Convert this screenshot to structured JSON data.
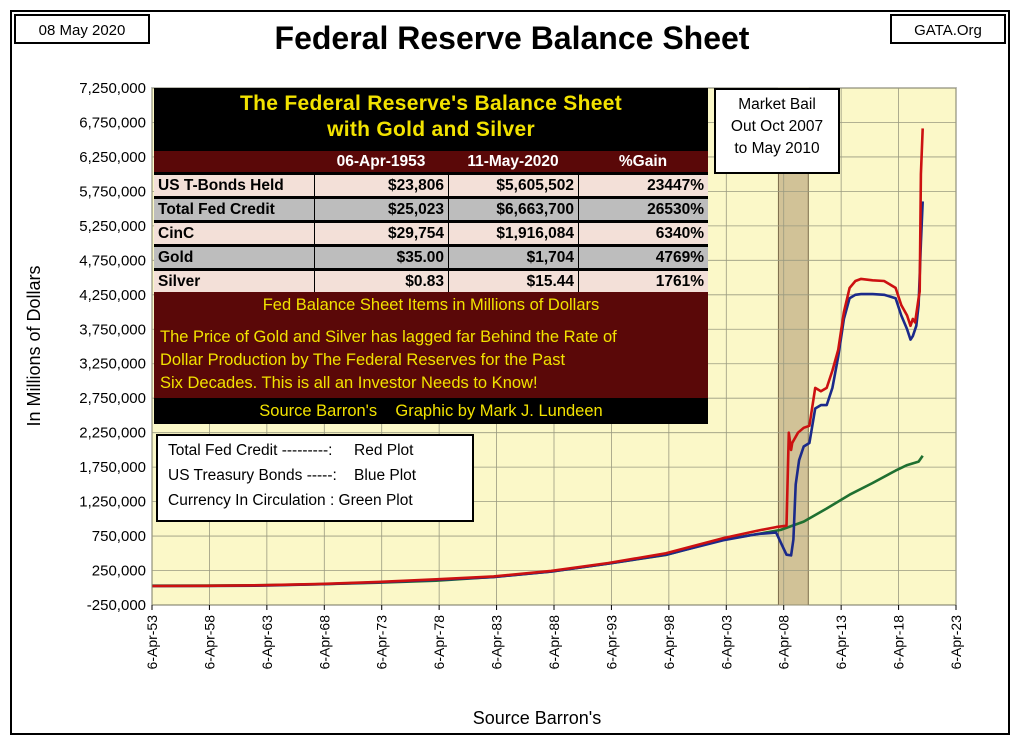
{
  "header": {
    "date": "08 May 2020",
    "source_tag": "GATA.Org",
    "title": "Federal Reserve Balance Sheet"
  },
  "chart_data": {
    "type": "line",
    "title": "Federal Reserve Balance Sheet",
    "xlabel": "Source Barron's",
    "ylabel": "In Millions of Dollars",
    "x_tick_labels": [
      "6-Apr-53",
      "6-Apr-58",
      "6-Apr-63",
      "6-Apr-68",
      "6-Apr-73",
      "6-Apr-78",
      "6-Apr-83",
      "6-Apr-88",
      "6-Apr-93",
      "6-Apr-98",
      "6-Apr-03",
      "6-Apr-08",
      "6-Apr-13",
      "6-Apr-18",
      "6-Apr-23"
    ],
    "x_tick_years": [
      1953,
      1958,
      1963,
      1968,
      1973,
      1978,
      1983,
      1988,
      1993,
      1998,
      2003,
      2008,
      2013,
      2018,
      2023
    ],
    "y_tick_labels": [
      "7,250,000",
      "6,750,000",
      "6,250,000",
      "5,750,000",
      "5,250,000",
      "4,750,000",
      "4,250,000",
      "3,750,000",
      "3,250,000",
      "2,750,000",
      "2,250,000",
      "1,750,000",
      "1,250,000",
      "750,000",
      "250,000",
      "-250,000"
    ],
    "xlim": [
      1953.26,
      2023.26
    ],
    "ylim": [
      -250000,
      7250000
    ],
    "grid": true,
    "background_color": "#fbf8c8",
    "highlight_band": {
      "x_start": 2007.8,
      "x_end": 2010.4,
      "color": "#c9b98e"
    },
    "series": [
      {
        "name": "Total Fed Credit",
        "color": "#cc1111",
        "x": [
          1953.3,
          1958,
          1963,
          1968,
          1973,
          1978,
          1983,
          1988,
          1993,
          1998,
          2003,
          2006,
          2007.6,
          2008.5,
          2008.7,
          2008.9,
          2009,
          2009.5,
          2010,
          2010.5,
          2011,
          2011.5,
          2012,
          2012.5,
          2013,
          2013.5,
          2014,
          2014.5,
          2015,
          2016,
          2017,
          2018,
          2018.5,
          2019,
          2019.3,
          2019.5,
          2019.7,
          2020,
          2020.1,
          2020.2,
          2020.36
        ],
        "y": [
          25023,
          28000,
          37000,
          56000,
          85000,
          123000,
          165000,
          245000,
          360000,
          500000,
          720000,
          830000,
          880000,
          900000,
          2250000,
          2000000,
          2100000,
          2250000,
          2320000,
          2350000,
          2900000,
          2850000,
          2900000,
          3150000,
          3450000,
          4000000,
          4350000,
          4450000,
          4480000,
          4460000,
          4450000,
          4350000,
          4100000,
          3950000,
          3800000,
          3900000,
          3850000,
          4200000,
          4300000,
          6000000,
          6663700
        ]
      },
      {
        "name": "US Treasury Bonds",
        "color": "#1b2a8a",
        "x": [
          1953.3,
          1958,
          1963,
          1968,
          1973,
          1978,
          1983,
          1988,
          1993,
          1998,
          2003,
          2006,
          2007.6,
          2008.5,
          2008.9,
          2009.1,
          2009.3,
          2009.6,
          2010,
          2010.5,
          2011,
          2011.5,
          2012,
          2012.5,
          2013,
          2013.5,
          2014,
          2014.5,
          2015,
          2016,
          2017,
          2018,
          2018.5,
          2019,
          2019.3,
          2019.5,
          2019.8,
          2020,
          2020.2,
          2020.36
        ],
        "y": [
          23806,
          26000,
          32000,
          52000,
          79000,
          116000,
          155000,
          235000,
          350000,
          480000,
          690000,
          780000,
          800000,
          480000,
          470000,
          700000,
          1500000,
          1850000,
          2050000,
          2100000,
          2600000,
          2650000,
          2650000,
          2900000,
          3350000,
          3900000,
          4200000,
          4250000,
          4260000,
          4260000,
          4250000,
          4200000,
          3950000,
          3750000,
          3600000,
          3650000,
          3800000,
          4100000,
          5000000,
          5605502
        ]
      },
      {
        "name": "Currency In Circulation",
        "color": "#1f7031",
        "x": [
          1953.3,
          1958,
          1963,
          1968,
          1973,
          1978,
          1983,
          1988,
          1993,
          1998,
          2003,
          2006,
          2008,
          2010,
          2012,
          2014,
          2016,
          2018,
          2019,
          2020,
          2020.36
        ],
        "y": [
          29754,
          32000,
          37000,
          52000,
          74000,
          103000,
          157000,
          235000,
          350000,
          475000,
          700000,
          780000,
          840000,
          960000,
          1150000,
          1350000,
          1520000,
          1700000,
          1780000,
          1830000,
          1916084
        ]
      }
    ]
  },
  "table": {
    "title_line1": "The Federal Reserve's Balance Sheet",
    "title_line2": "with Gold and Silver",
    "columns": [
      "",
      "06-Apr-1953",
      "11-May-2020",
      "%Gain"
    ],
    "rows": [
      {
        "label": "US T-Bonds Held",
        "v1953": "$23,806",
        "v2020": "$5,605,502",
        "gain": "23447%"
      },
      {
        "label": "Total Fed Credit",
        "v1953": "$25,023",
        "v2020": "$6,663,700",
        "gain": "26530%"
      },
      {
        "label": "CinC",
        "v1953": "$29,754",
        "v2020": "$1,916,084",
        "gain": "6340%"
      },
      {
        "label": "Gold",
        "v1953": "$35.00",
        "v2020": "$1,704",
        "gain": "4769%"
      },
      {
        "label": "Silver",
        "v1953": "$0.83",
        "v2020": "$15.44",
        "gain": "1761%"
      }
    ],
    "units_note": "Fed Balance Sheet Items in Millions of Dollars",
    "commentary_line1": "The Price of Gold and Silver has lagged far Behind the Rate of",
    "commentary_line2": "Dollar Production by The Federal Reserves for the Past",
    "commentary_line3": "Six Decades.  This is all an Investor Needs to Know!",
    "credit": "Source Barron's    Graphic by Mark J. Lundeen"
  },
  "legend": {
    "line1": "Total Fed Credit ---------:     Red Plot",
    "line2": "US Treasury Bonds -----:    Blue Plot",
    "line3": "Currency In Circulation : Green Plot"
  },
  "bailout_note": {
    "line1": "Market Bail",
    "line2": "Out Oct 2007",
    "line3": "to May 2010"
  }
}
